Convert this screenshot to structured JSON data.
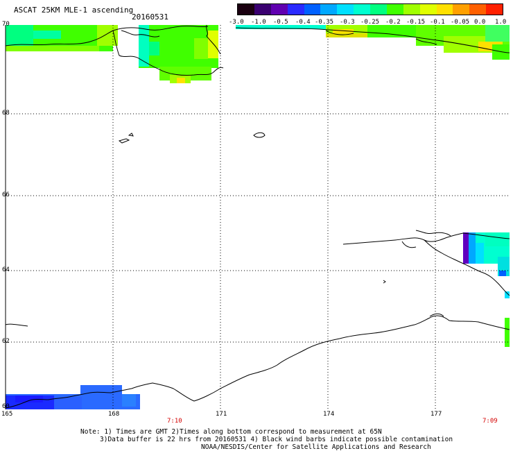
{
  "header": {
    "title": "ASCAT 25KM MLE-1 ascending",
    "date": "20160531"
  },
  "colorbar": {
    "labels": [
      "-3.0",
      "-1.0",
      "-0.5",
      "-0.4",
      "-0.35",
      "-0.3",
      "-0.25",
      "-0.2",
      "-0.15",
      "-0.1",
      "-0.05",
      "0.0",
      "1.0"
    ],
    "colors": [
      "#1a0010",
      "#3a0070",
      "#6000b0",
      "#2a2aff",
      "#0060ff",
      "#00a8ff",
      "#00e0ff",
      "#00ffd0",
      "#00ff80",
      "#40ff00",
      "#a0ff00",
      "#e0ff00",
      "#ffe000",
      "#ffa000",
      "#ff6000",
      "#ff2000"
    ]
  },
  "axes": {
    "lat_labels": [
      "70",
      "68",
      "66",
      "64",
      "62",
      "60"
    ],
    "lon_labels": [
      "165",
      "168",
      "171",
      "174",
      "177"
    ],
    "time_labels": [
      "7:10",
      "7:09"
    ]
  },
  "notes": {
    "line1": "Note: 1) Times are GMT 2)Times along bottom correspond to measurement at 65N",
    "line2": "3)Data buffer is 22 hrs from 20160531 4) Black wind barbs indicate possible contamination",
    "line3": "NOAA/NESDIS/Center for Satellite Applications and Research"
  }
}
